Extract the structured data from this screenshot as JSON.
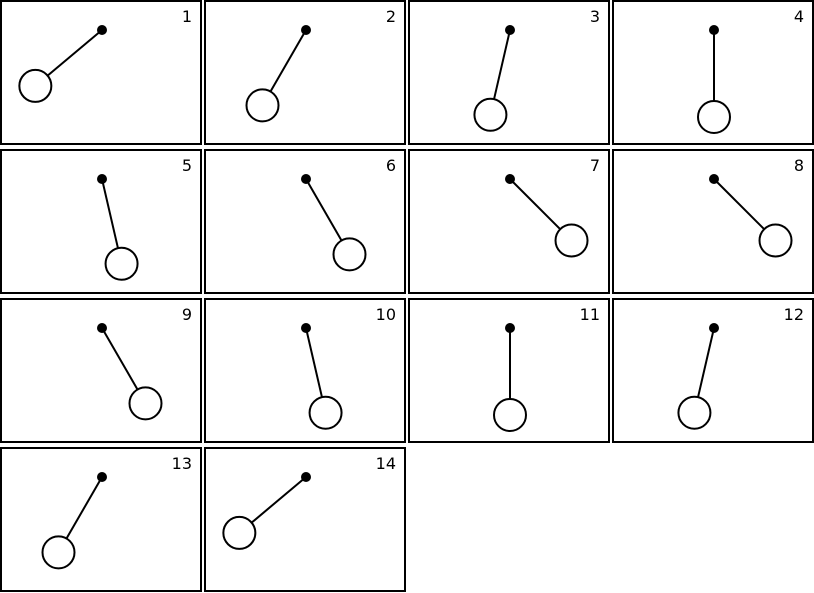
{
  "colors": {
    "stroke": "#000000",
    "background": "#ffffff"
  },
  "frames": [
    {
      "label": "1",
      "angle_deg": -50
    },
    {
      "label": "2",
      "angle_deg": -30
    },
    {
      "label": "3",
      "angle_deg": -13
    },
    {
      "label": "4",
      "angle_deg": 0
    },
    {
      "label": "5",
      "angle_deg": 13
    },
    {
      "label": "6",
      "angle_deg": 30
    },
    {
      "label": "7",
      "angle_deg": 45
    },
    {
      "label": "8",
      "angle_deg": 45
    },
    {
      "label": "9",
      "angle_deg": 30
    },
    {
      "label": "10",
      "angle_deg": 13
    },
    {
      "label": "11",
      "angle_deg": 0
    },
    {
      "label": "12",
      "angle_deg": -13
    },
    {
      "label": "13",
      "angle_deg": -30
    },
    {
      "label": "14",
      "angle_deg": -50
    }
  ]
}
